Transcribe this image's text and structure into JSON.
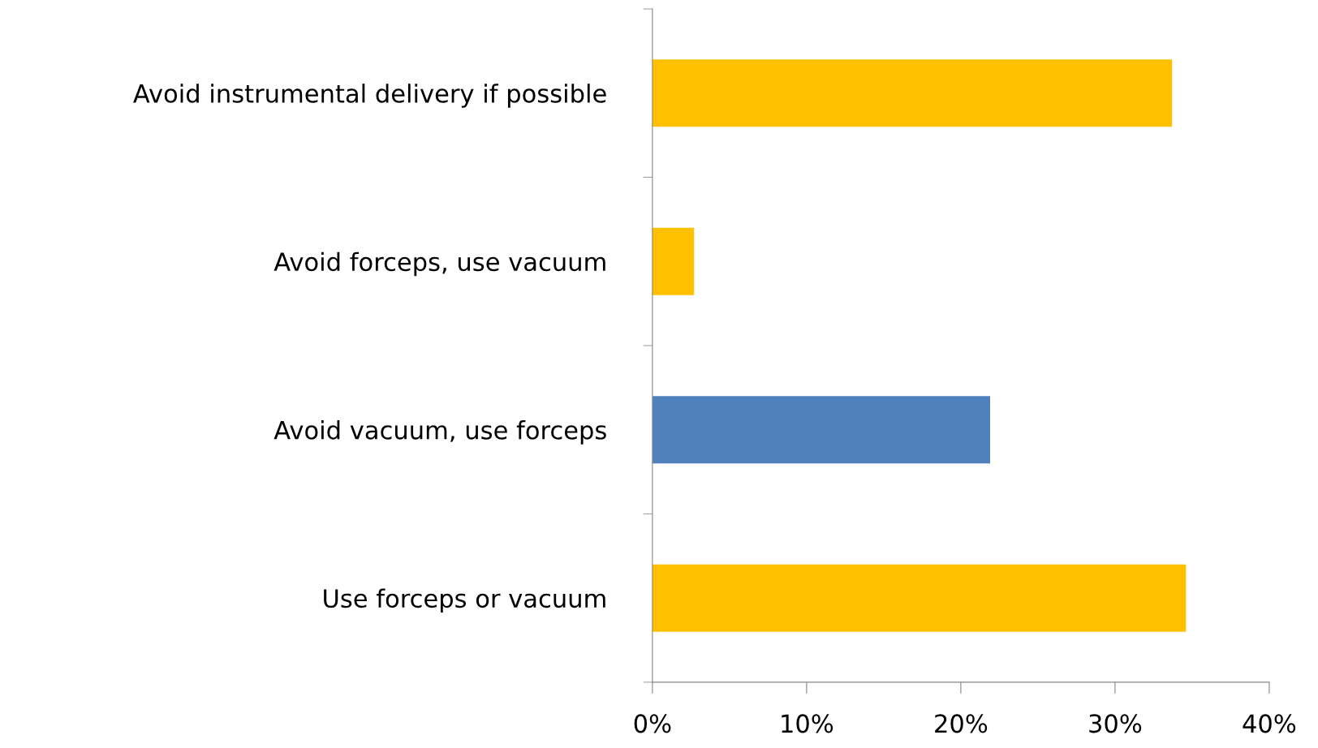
{
  "chart_data": {
    "type": "bar",
    "orientation": "horizontal",
    "categories": [
      "Avoid instrumental delivery if possible",
      "Avoid forceps, use vacuum",
      "Avoid vacuum, use forceps",
      "Use forceps or vacuum"
    ],
    "values": [
      33.7,
      2.7,
      21.9,
      34.6
    ],
    "colors": [
      "#ffc000",
      "#ffc000",
      "#4f81bd",
      "#ffc000"
    ],
    "xlim": [
      0,
      40
    ],
    "xticks": [
      {
        "value": 0,
        "label": "0%"
      },
      {
        "value": 10,
        "label": "10%"
      },
      {
        "value": 20,
        "label": "20%"
      },
      {
        "value": 30,
        "label": "30%"
      },
      {
        "value": 40,
        "label": "40%"
      }
    ],
    "grid": false,
    "legend": false
  }
}
